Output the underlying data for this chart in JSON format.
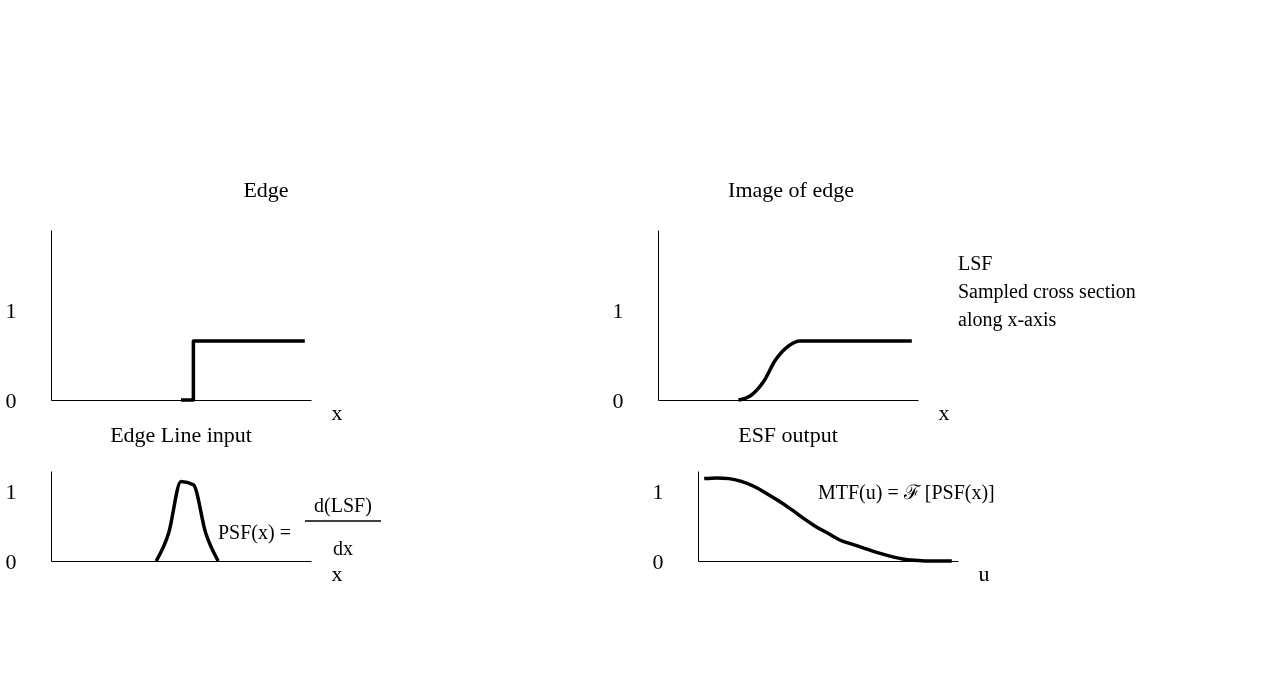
{
  "chart_data": [
    {
      "type": "other",
      "annotations": [
        "Edge",
        "Image of edge"
      ]
    },
    {
      "type": "step",
      "title": "Edge Line input",
      "xlabel": "x",
      "categories": [
        null,
        null,
        null,
        null,
        null,
        null,
        null,
        null,
        null,
        null,
        null,
        null,
        null,
        null,
        null,
        null,
        null,
        null,
        null,
        null,
        null
      ],
      "values": [
        null,
        null,
        null,
        null,
        null,
        null,
        null,
        null,
        null,
        null,
        0,
        0.66,
        0.66,
        0.66,
        0.66,
        0.66,
        0.66,
        0.66,
        0.66,
        0.66,
        0.66
      ],
      "color": "#000000",
      "ylim": [
        0,
        1.9
      ],
      "yticks": [
        0,
        1
      ],
      "tick_labels": "y"
    },
    {
      "type": "line",
      "title": "ESF output",
      "xlabel": "x",
      "categories": [
        null,
        null,
        null,
        null,
        null,
        null,
        null,
        null,
        null,
        null,
        null,
        null,
        null,
        null,
        null,
        null,
        null,
        null,
        null,
        null,
        null
      ],
      "values": [
        null,
        null,
        null,
        null,
        null,
        null,
        0,
        0.05,
        0.2,
        0.45,
        0.6,
        0.66,
        0.66,
        0.66,
        0.66,
        0.66,
        0.66,
        0.66,
        0.66,
        0.66,
        0.66
      ],
      "color": "#000000",
      "ylim": [
        0,
        1.9
      ],
      "yticks": [
        0,
        1
      ],
      "tick_labels": "y",
      "annotations": [
        "LSF\nSampled cross section\nalong x-axis"
      ]
    },
    {
      "type": "line",
      "xlabel": "x",
      "categories": [
        null,
        null,
        null,
        null,
        null,
        null,
        null,
        null,
        null,
        null,
        null,
        null,
        null,
        null,
        null,
        null,
        null,
        null,
        null,
        null,
        null
      ],
      "values": [
        null,
        null,
        null,
        null,
        null,
        null,
        null,
        null,
        0,
        0.4,
        1.15,
        1.1,
        0.4,
        0,
        null,
        null,
        null,
        null,
        null,
        null,
        null
      ],
      "color": "#000000",
      "ylim": [
        0,
        1.3
      ],
      "yticks": [
        0,
        1
      ],
      "tick_labels": "y",
      "annotations": [
        "PSF(x) =",
        "d(LSF)",
        "dx"
      ]
    },
    {
      "type": "line",
      "xlabel": "u",
      "categories": [
        null,
        null,
        null,
        null,
        null,
        null,
        null,
        null,
        null,
        null,
        null,
        null,
        null,
        null,
        null,
        null,
        null,
        null,
        null,
        null,
        null
      ],
      "values": [
        1.19,
        1.2,
        1.19,
        1.15,
        1.08,
        0.98,
        0.87,
        0.75,
        0.62,
        0.5,
        0.4,
        0.3,
        0.24,
        0.18,
        0.12,
        0.07,
        0.03,
        0.01,
        0,
        0,
        0
      ],
      "color": "#000000",
      "ylim": [
        0,
        1.3
      ],
      "yticks": [
        0,
        1
      ],
      "tick_labels": "y",
      "annotations": [
        "MTF(u) = ℱ [PSF(x)]"
      ]
    }
  ]
}
